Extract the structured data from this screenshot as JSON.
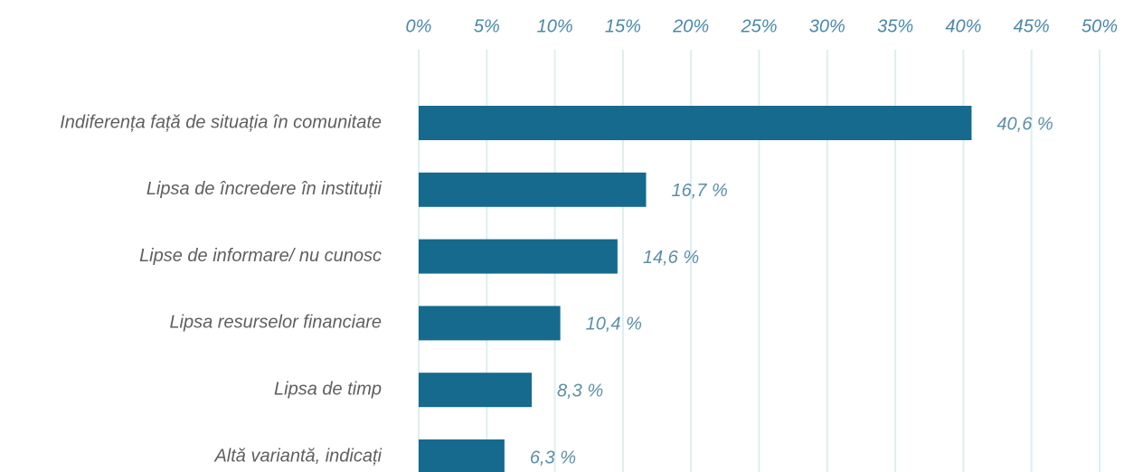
{
  "chart_data": {
    "type": "barh",
    "categories": [
      "Indiferența față de situația în comunitate",
      "Lipsa de încredere în instituții",
      "Lipse de informare/ nu cunosc",
      "Lipsa resurselor financiare",
      "Lipsa de timp",
      "Altă variantă, indicați"
    ],
    "values": [
      40.6,
      16.7,
      14.6,
      10.4,
      8.3,
      6.3
    ],
    "value_labels": [
      "40,6 %",
      "16,7 %",
      "14,6 %",
      "10,4 %",
      "8,3 %",
      "6,3 %"
    ],
    "color": "#156a8e",
    "xlim": [
      0,
      50
    ],
    "xticks": [
      {
        "value": 0,
        "label": "0%"
      },
      {
        "value": 5,
        "label": "5%"
      },
      {
        "value": 10,
        "label": "10%"
      },
      {
        "value": 15,
        "label": "15%"
      },
      {
        "value": 20,
        "label": "20%"
      },
      {
        "value": 25,
        "label": "25%"
      },
      {
        "value": 30,
        "label": "30%"
      },
      {
        "value": 35,
        "label": "35%"
      },
      {
        "value": 40,
        "label": "40%"
      },
      {
        "value": 45,
        "label": "45%"
      },
      {
        "value": 50,
        "label": "50%"
      }
    ],
    "grid": true
  }
}
